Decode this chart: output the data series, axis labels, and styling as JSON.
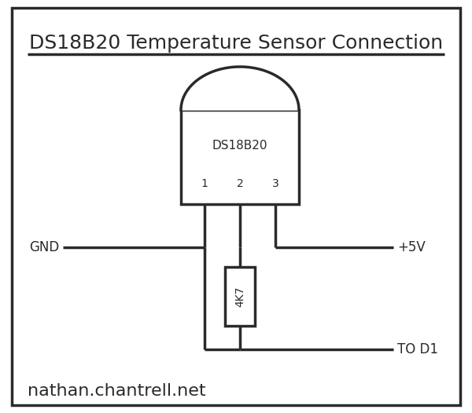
{
  "title": "DS18B20 Temperature Sensor Connection",
  "title_fontsize": 18,
  "background_color": "#ffffff",
  "border_color": "#2a2a2a",
  "line_color": "#2a2a2a",
  "text_color": "#2a2a2a",
  "sensor_label": "DS18B20",
  "sensor_pins": [
    "1",
    "2",
    "3"
  ],
  "resistor_label": "4K7",
  "gnd_label": "GND",
  "vcc_label": "+5V",
  "data_label": "TO D1",
  "website": "nathan.chantrell.net",
  "sensor_label_fontsize": 11,
  "pin_fontsize": 10,
  "label_fontsize": 12,
  "website_fontsize": 16
}
